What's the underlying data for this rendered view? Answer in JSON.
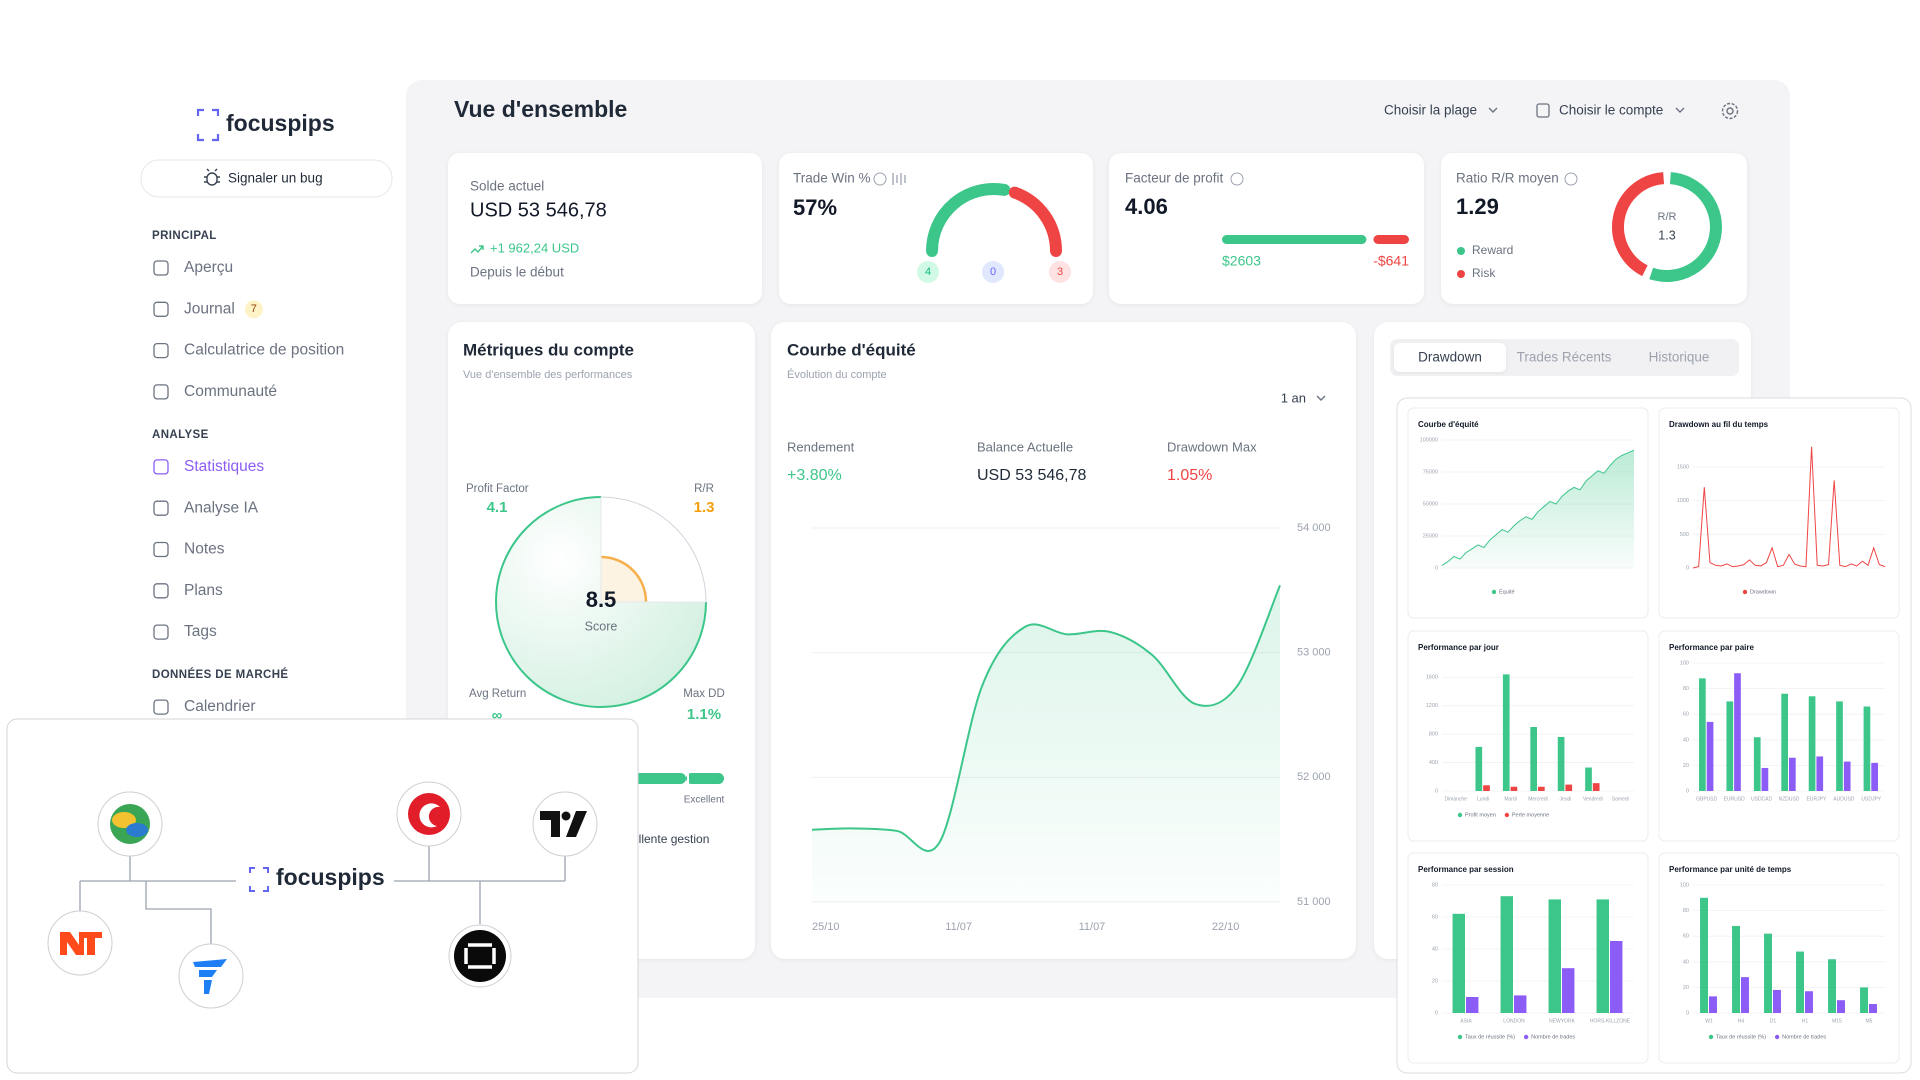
{
  "sidebar": {
    "logo": "focuspips",
    "bug_button": "Signaler un bug",
    "sections": [
      {
        "title": "PRINCIPAL",
        "items": [
          {
            "label": "Aperçu"
          },
          {
            "label": "Journal",
            "badge": 7
          },
          {
            "label": "Calculatrice de position"
          },
          {
            "label": "Communauté"
          }
        ]
      },
      {
        "title": "ANALYSE",
        "items": [
          {
            "label": "Statistiques",
            "active": true
          },
          {
            "label": "Analyse IA"
          },
          {
            "label": "Notes"
          },
          {
            "label": "Plans"
          },
          {
            "label": "Tags"
          }
        ]
      },
      {
        "title": "DONNÉES DE MARCHÉ",
        "items": [
          {
            "label": "Calendrier"
          }
        ]
      }
    ]
  },
  "header": {
    "title": "Vue d'ensemble",
    "range_picker": "Choisir la plage",
    "account_picker": "Choisir le compte"
  },
  "balance_card": {
    "label": "Solde actuel",
    "value": "USD 53 546,78",
    "change": "+1 962,24 USD",
    "since": "Depuis le début"
  },
  "win_card": {
    "label": "Trade Win %",
    "value": 57,
    "value_label": "57%",
    "wins": 4,
    "breakeven": 0,
    "losses": 3,
    "win_color": "#3cc68a",
    "loss_color": "#ef4444"
  },
  "profit_card": {
    "label": "Facteur de profit",
    "value": 4.06,
    "gross_profit": 2603,
    "gross_profit_label": "$2603",
    "gross_loss": -641,
    "gross_loss_label": "-$641"
  },
  "rr_card": {
    "label": "Ratio R/R moyen",
    "value": 1.29,
    "donut_label": "R/R",
    "donut_value": 1.3,
    "legend": [
      "Reward",
      "Risk"
    ]
  },
  "metrics_card": {
    "title": "Métriques du compte",
    "subtitle": "Vue d'ensemble des performances",
    "score": 8.5,
    "score_label": "Score",
    "profit_factor": {
      "label": "Profit Factor",
      "value": 4.1
    },
    "rr": {
      "label": "R/R",
      "value": 1.3
    },
    "avg_return": {
      "label": "Avg Return",
      "value": "∞"
    },
    "max_dd": {
      "label": "Max DD",
      "value": 1.1,
      "value_label": "1.1%"
    },
    "rating": "Excellent",
    "message": "Excellente gestion"
  },
  "equity_card": {
    "title": "Courbe d'équité",
    "subtitle": "Évolution du compte",
    "period": "1 an",
    "stats": [
      {
        "label": "Rendement",
        "value": "+3.80%"
      },
      {
        "label": "Balance Actuelle",
        "value": "USD 53 546,78"
      },
      {
        "label": "Drawdown Max",
        "value": "1.05%"
      }
    ],
    "chart": {
      "type": "line",
      "color": "#3cc68a",
      "values": [
        51580,
        51590,
        51570,
        51480,
        52735,
        53206,
        53147,
        53167,
        52980,
        52590,
        52735,
        53540
      ],
      "ylim": [
        51000,
        54000
      ],
      "yticks": [
        {
          "value": 51000,
          "label": "51 000"
        },
        {
          "value": 52000,
          "label": "52 000"
        },
        {
          "value": 53000,
          "label": "53 000"
        },
        {
          "value": 54000,
          "label": "54 000"
        }
      ],
      "xtick_labels": [
        "25/10",
        "11/07",
        "11/07",
        "22/10"
      ],
      "grid": true
    }
  },
  "tabs": [
    {
      "label": "Drawdown",
      "active": true
    },
    {
      "label": "Trades Récents"
    },
    {
      "label": "Historique"
    }
  ],
  "mini_charts": [
    {
      "type": "area",
      "title": "Courbe d'équité",
      "ylim": [
        0,
        100000
      ],
      "yticks": [
        0,
        25000,
        50000,
        75000,
        100000
      ],
      "series": [
        {
          "name": "Équité",
          "color": "#3cc68a",
          "values": [
            2000,
            5000,
            9000,
            7000,
            12000,
            15000,
            18000,
            16000,
            22000,
            26000,
            30000,
            28000,
            33000,
            37000,
            40000,
            38000,
            44000,
            48000,
            52000,
            50000,
            56000,
            60000,
            63000,
            61000,
            68000,
            72000,
            76000,
            74000,
            80000,
            85000,
            88000,
            90000,
            92000
          ]
        }
      ]
    },
    {
      "type": "line",
      "title": "Drawdown au fil du temps",
      "ylim": [
        0,
        1900
      ],
      "yticks": [
        0,
        500,
        1000,
        1500
      ],
      "series": [
        {
          "name": "Drawdown",
          "color": "#ef4444",
          "values": [
            0,
            20,
            1200,
            80,
            40,
            30,
            60,
            20,
            30,
            50,
            120,
            40,
            30,
            80,
            300,
            20,
            40,
            200,
            60,
            30,
            20,
            1800,
            40,
            30,
            50,
            1300,
            40,
            20,
            60,
            30,
            100,
            40,
            300,
            50,
            20
          ]
        }
      ]
    },
    {
      "type": "bar",
      "title": "Performance par jour",
      "ylim": [
        0,
        1800
      ],
      "yticks": [
        0,
        400,
        800,
        1200,
        1600
      ],
      "categories": [
        "Dimanche",
        "Lundi",
        "Mardi",
        "Mercredi",
        "Jeudi",
        "Vendredi",
        "Samedi"
      ],
      "series": [
        {
          "name": "Profit moyen",
          "color": "#3cc68a",
          "values": [
            0,
            620,
            1640,
            900,
            760,
            330,
            0
          ]
        },
        {
          "name": "Perte moyenne",
          "color": "#ef4444",
          "values": [
            0,
            80,
            60,
            60,
            90,
            110,
            0
          ]
        }
      ]
    },
    {
      "type": "bar",
      "title": "Performance par paire",
      "ylim": [
        0,
        100
      ],
      "yticks": [
        0,
        20,
        40,
        60,
        80,
        100
      ],
      "categories": [
        "GBPUSD",
        "EURUSD",
        "USDCAD",
        "NZDUSD",
        "EURJPY",
        "AUDUSD",
        "USDJPY"
      ],
      "series": [
        {
          "color": "#3cc68a",
          "values": [
            88,
            70,
            42,
            76,
            74,
            70,
            66
          ]
        },
        {
          "color": "#8b5cf6",
          "values": [
            54,
            92,
            18,
            26,
            27,
            23,
            22
          ]
        }
      ]
    },
    {
      "type": "bar",
      "title": "Performance par session",
      "ylim": [
        0,
        80
      ],
      "yticks": [
        0,
        20,
        40,
        60,
        80
      ],
      "categories": [
        "ASIA",
        "LONDON",
        "NEWYORK",
        "HORS-KILLZONE"
      ],
      "series": [
        {
          "name": "Taux de réussite (%)",
          "color": "#3cc68a",
          "values": [
            62,
            73,
            71,
            71
          ]
        },
        {
          "name": "Nombre de trades",
          "color": "#8b5cf6",
          "values": [
            10,
            11,
            28,
            45
          ]
        }
      ]
    },
    {
      "type": "bar",
      "title": "Performance par unité de temps",
      "ylim": [
        0,
        100
      ],
      "yticks": [
        0,
        20,
        40,
        60,
        80,
        100
      ],
      "categories": [
        "W1",
        "H4",
        "D1",
        "H1",
        "M15",
        "M5"
      ],
      "series": [
        {
          "name": "Taux de réussite (%)",
          "color": "#3cc68a",
          "values": [
            90,
            68,
            62,
            48,
            42,
            20
          ]
        },
        {
          "name": "Nombre de trades",
          "color": "#8b5cf6",
          "values": [
            13,
            28,
            18,
            17,
            10,
            7
          ]
        }
      ]
    }
  ],
  "integrations": {
    "logo": "focuspips"
  }
}
